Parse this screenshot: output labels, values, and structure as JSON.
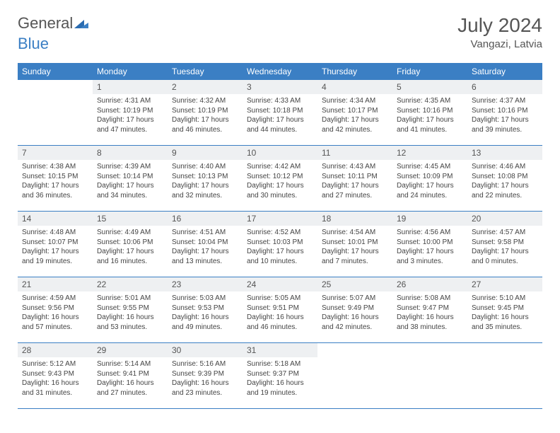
{
  "brand": {
    "part1": "General",
    "part2": "Blue"
  },
  "title": "July 2024",
  "location": "Vangazi, Latvia",
  "layout": {
    "columns": 7,
    "rows": 5,
    "first_day_offset": 1,
    "days_in_month": 31
  },
  "colors": {
    "header_bg": "#3b7fc4",
    "header_text": "#ffffff",
    "daynum_bg": "#eef0f2",
    "text": "#444444",
    "row_border": "#3b7fc4",
    "background": "#ffffff"
  },
  "typography": {
    "title_fontsize": 28,
    "location_fontsize": 15,
    "weekday_fontsize": 12,
    "daynum_fontsize": 12,
    "body_fontsize": 10
  },
  "weekdays": [
    "Sunday",
    "Monday",
    "Tuesday",
    "Wednesday",
    "Thursday",
    "Friday",
    "Saturday"
  ],
  "days": [
    {
      "n": 1,
      "sr": "4:31 AM",
      "ss": "10:19 PM",
      "dl": "17 hours and 47 minutes."
    },
    {
      "n": 2,
      "sr": "4:32 AM",
      "ss": "10:19 PM",
      "dl": "17 hours and 46 minutes."
    },
    {
      "n": 3,
      "sr": "4:33 AM",
      "ss": "10:18 PM",
      "dl": "17 hours and 44 minutes."
    },
    {
      "n": 4,
      "sr": "4:34 AM",
      "ss": "10:17 PM",
      "dl": "17 hours and 42 minutes."
    },
    {
      "n": 5,
      "sr": "4:35 AM",
      "ss": "10:16 PM",
      "dl": "17 hours and 41 minutes."
    },
    {
      "n": 6,
      "sr": "4:37 AM",
      "ss": "10:16 PM",
      "dl": "17 hours and 39 minutes."
    },
    {
      "n": 7,
      "sr": "4:38 AM",
      "ss": "10:15 PM",
      "dl": "17 hours and 36 minutes."
    },
    {
      "n": 8,
      "sr": "4:39 AM",
      "ss": "10:14 PM",
      "dl": "17 hours and 34 minutes."
    },
    {
      "n": 9,
      "sr": "4:40 AM",
      "ss": "10:13 PM",
      "dl": "17 hours and 32 minutes."
    },
    {
      "n": 10,
      "sr": "4:42 AM",
      "ss": "10:12 PM",
      "dl": "17 hours and 30 minutes."
    },
    {
      "n": 11,
      "sr": "4:43 AM",
      "ss": "10:11 PM",
      "dl": "17 hours and 27 minutes."
    },
    {
      "n": 12,
      "sr": "4:45 AM",
      "ss": "10:09 PM",
      "dl": "17 hours and 24 minutes."
    },
    {
      "n": 13,
      "sr": "4:46 AM",
      "ss": "10:08 PM",
      "dl": "17 hours and 22 minutes."
    },
    {
      "n": 14,
      "sr": "4:48 AM",
      "ss": "10:07 PM",
      "dl": "17 hours and 19 minutes."
    },
    {
      "n": 15,
      "sr": "4:49 AM",
      "ss": "10:06 PM",
      "dl": "17 hours and 16 minutes."
    },
    {
      "n": 16,
      "sr": "4:51 AM",
      "ss": "10:04 PM",
      "dl": "17 hours and 13 minutes."
    },
    {
      "n": 17,
      "sr": "4:52 AM",
      "ss": "10:03 PM",
      "dl": "17 hours and 10 minutes."
    },
    {
      "n": 18,
      "sr": "4:54 AM",
      "ss": "10:01 PM",
      "dl": "17 hours and 7 minutes."
    },
    {
      "n": 19,
      "sr": "4:56 AM",
      "ss": "10:00 PM",
      "dl": "17 hours and 3 minutes."
    },
    {
      "n": 20,
      "sr": "4:57 AM",
      "ss": "9:58 PM",
      "dl": "17 hours and 0 minutes."
    },
    {
      "n": 21,
      "sr": "4:59 AM",
      "ss": "9:56 PM",
      "dl": "16 hours and 57 minutes."
    },
    {
      "n": 22,
      "sr": "5:01 AM",
      "ss": "9:55 PM",
      "dl": "16 hours and 53 minutes."
    },
    {
      "n": 23,
      "sr": "5:03 AM",
      "ss": "9:53 PM",
      "dl": "16 hours and 49 minutes."
    },
    {
      "n": 24,
      "sr": "5:05 AM",
      "ss": "9:51 PM",
      "dl": "16 hours and 46 minutes."
    },
    {
      "n": 25,
      "sr": "5:07 AM",
      "ss": "9:49 PM",
      "dl": "16 hours and 42 minutes."
    },
    {
      "n": 26,
      "sr": "5:08 AM",
      "ss": "9:47 PM",
      "dl": "16 hours and 38 minutes."
    },
    {
      "n": 27,
      "sr": "5:10 AM",
      "ss": "9:45 PM",
      "dl": "16 hours and 35 minutes."
    },
    {
      "n": 28,
      "sr": "5:12 AM",
      "ss": "9:43 PM",
      "dl": "16 hours and 31 minutes."
    },
    {
      "n": 29,
      "sr": "5:14 AM",
      "ss": "9:41 PM",
      "dl": "16 hours and 27 minutes."
    },
    {
      "n": 30,
      "sr": "5:16 AM",
      "ss": "9:39 PM",
      "dl": "16 hours and 23 minutes."
    },
    {
      "n": 31,
      "sr": "5:18 AM",
      "ss": "9:37 PM",
      "dl": "16 hours and 19 minutes."
    }
  ],
  "labels": {
    "sunrise": "Sunrise:",
    "sunset": "Sunset:",
    "daylight": "Daylight:"
  }
}
